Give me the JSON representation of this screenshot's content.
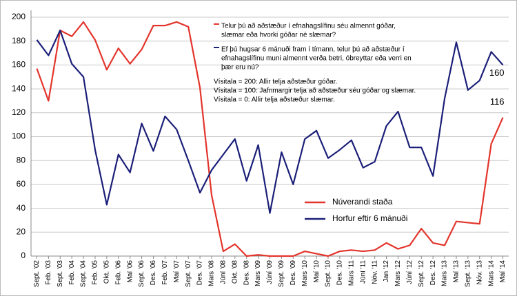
{
  "chart_data": {
    "type": "line",
    "categories": [
      "Sept. '02",
      "Feb. '03",
      "Sept. '03",
      "Feb. '04",
      "Sept. '04",
      "Feb. '05",
      "Okt. '05",
      "Feb. '06",
      "Maí '06",
      "Sept. '06",
      "Des. '06",
      "Feb. '07",
      "Maí '07",
      "Sept. '07",
      "Des. '07",
      "Mars '08",
      "Júní '08",
      "Okt. '08",
      "Des. '08",
      "Mars '09",
      "Júní '09",
      "Sept. '09",
      "Des. '09",
      "Mars '10",
      "Maí '10",
      "Sept. '10",
      "Des. '10",
      "Mars '11",
      "Júní '11",
      "Nóv. '11",
      "Jan '12",
      "Mars '12",
      "Júní '12",
      "Sept. '12",
      "Des. '12",
      "Mars '13",
      "Maí '13",
      "Sept. '13",
      "Nóv. '13",
      "Mars '14",
      "Maí '14"
    ],
    "series": [
      {
        "name": "Núverandi staða",
        "color": "#e3342b",
        "values": [
          157,
          130,
          189,
          184,
          196,
          181,
          156,
          174,
          161,
          173,
          193,
          193,
          196,
          192,
          141,
          51,
          4,
          10,
          0,
          1,
          0,
          0,
          0,
          4,
          2,
          0,
          4,
          5,
          4,
          5,
          11,
          6,
          9,
          23,
          11,
          9,
          29,
          28,
          27,
          94,
          116
        ]
      },
      {
        "name": "Horfur eftir 6 mánuði",
        "color": "#1b1f78",
        "values": [
          181,
          168,
          189,
          161,
          150,
          89,
          43,
          85,
          70,
          111,
          88,
          117,
          106,
          80,
          53,
          72,
          85,
          98,
          63,
          93,
          36,
          87,
          60,
          98,
          105,
          82,
          89,
          97,
          74,
          79,
          109,
          121,
          91,
          91,
          67,
          132,
          179,
          139,
          147,
          171,
          160
        ]
      }
    ],
    "ylim": [
      0,
      200
    ],
    "yticks": [
      0,
      20,
      40,
      60,
      80,
      100,
      120,
      140,
      160,
      180,
      200
    ],
    "grid": true,
    "annotations": [
      {
        "lines": [
          "Telur þú að aðstæður í efnahagslífinu séu almennt góðar,",
          "slæmar eða hvorki góðar né slæmar?"
        ],
        "series": 0
      },
      {
        "lines": [
          "Ef þú hugsar 6 mánuði fram í tímann, telur þú að aðstæður í",
          "efnahagslífinu muni almennt verða betri, óbreyttar eða verri en",
          "þær eru nú?"
        ],
        "series": 1
      },
      {
        "lines": [
          "Vísitala = 200:  Allir telja aðstæður góðar.",
          "Vísitala = 100:  Jafnmargir telja að aðstæður séu góðar og slæmar.",
          "Vísitala = 0:  Allir telja aðstæður slæmar."
        ]
      }
    ]
  }
}
